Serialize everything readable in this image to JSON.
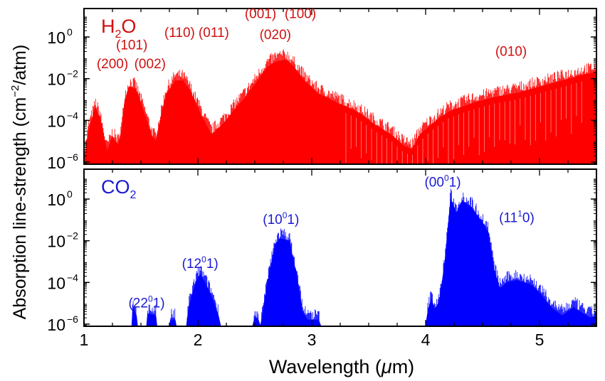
{
  "chart_data": {
    "type": "area",
    "xlabel_pre": "Wavelength (",
    "xlabel_mu": "μ",
    "xlabel_post": "m)",
    "ylabel_pre": "Absorption line-strength (cm",
    "ylabel_exp": "−2",
    "ylabel_post": "/atm)",
    "xlim": [
      1,
      5.5
    ],
    "ylim_log10": [
      -6,
      1.2
    ],
    "x_ticks": [
      1,
      2,
      3,
      4,
      5
    ],
    "x_tick_labels": [
      "1",
      "2",
      "3",
      "4",
      "5"
    ],
    "y_ticks": [
      {
        "exp": 0,
        "base": "10",
        "sup": "0"
      },
      {
        "exp": -2,
        "base": "10",
        "sup": "−2"
      },
      {
        "exp": -4,
        "base": "10",
        "sup": "−4"
      },
      {
        "exp": -6,
        "base": "10",
        "sup": "−6"
      }
    ],
    "panels": [
      {
        "molecule_main": "H",
        "molecule_sub": "2",
        "molecule_tail": "O",
        "color": "#ff0000",
        "label_color": "#d01010",
        "envelope_log10": [
          [
            1.0,
            -6.0
          ],
          [
            1.04,
            -4.5
          ],
          [
            1.1,
            -3.4
          ],
          [
            1.14,
            -3.9
          ],
          [
            1.2,
            -5.5
          ],
          [
            1.25,
            -4.8
          ],
          [
            1.3,
            -5.2
          ],
          [
            1.33,
            -4.5
          ],
          [
            1.36,
            -3.0
          ],
          [
            1.4,
            -2.4
          ],
          [
            1.45,
            -2.5
          ],
          [
            1.5,
            -3.2
          ],
          [
            1.55,
            -4.0
          ],
          [
            1.6,
            -4.8
          ],
          [
            1.63,
            -5.0
          ],
          [
            1.67,
            -4.0
          ],
          [
            1.72,
            -2.8
          ],
          [
            1.8,
            -2.1
          ],
          [
            1.87,
            -2.1
          ],
          [
            1.93,
            -2.6
          ],
          [
            2.0,
            -3.4
          ],
          [
            2.07,
            -4.2
          ],
          [
            2.12,
            -4.7
          ],
          [
            2.18,
            -4.4
          ],
          [
            2.25,
            -4.0
          ],
          [
            2.32,
            -3.5
          ],
          [
            2.4,
            -3.0
          ],
          [
            2.5,
            -2.3
          ],
          [
            2.6,
            -1.5
          ],
          [
            2.68,
            -1.2
          ],
          [
            2.78,
            -1.1
          ],
          [
            2.85,
            -1.5
          ],
          [
            2.95,
            -2.2
          ],
          [
            3.05,
            -2.7
          ],
          [
            3.2,
            -3.1
          ],
          [
            3.4,
            -3.6
          ],
          [
            3.55,
            -4.2
          ],
          [
            3.7,
            -4.7
          ],
          [
            3.8,
            -5.2
          ],
          [
            3.88,
            -5.4
          ],
          [
            3.95,
            -4.7
          ],
          [
            4.05,
            -4.2
          ],
          [
            4.2,
            -3.6
          ],
          [
            4.4,
            -3.2
          ],
          [
            4.6,
            -2.9
          ],
          [
            4.8,
            -2.7
          ],
          [
            5.0,
            -2.4
          ],
          [
            5.2,
            -2.1
          ],
          [
            5.4,
            -1.8
          ],
          [
            5.5,
            -1.7
          ]
        ],
        "annotations": [
          {
            "text": "(200)",
            "x": 1.25,
            "y": -1.5
          },
          {
            "text": "(101)",
            "x": 1.42,
            "y": -0.6
          },
          {
            "text": "(002)",
            "x": 1.58,
            "y": -1.5
          },
          {
            "text": "(110)",
            "x": 1.84,
            "y": 0.0
          },
          {
            "text": "(011)",
            "x": 2.14,
            "y": 0.0
          },
          {
            "text": "(001)",
            "x": 2.55,
            "y": 0.9
          },
          {
            "text": "(100)",
            "x": 2.9,
            "y": 0.9
          },
          {
            "text": "(020)",
            "x": 2.68,
            "y": -0.1
          },
          {
            "text": "(010)",
            "x": 4.75,
            "y": -0.9
          }
        ]
      },
      {
        "molecule_main": "CO",
        "molecule_sub": "2",
        "molecule_tail": "",
        "color": "#0000ff",
        "label_color": "#1a1ad0",
        "envelope_log10": [
          [
            1.0,
            -6.2
          ],
          [
            1.42,
            -6.2
          ],
          [
            1.43,
            -5.2
          ],
          [
            1.46,
            -5.6
          ],
          [
            1.47,
            -6.2
          ],
          [
            1.55,
            -6.2
          ],
          [
            1.56,
            -5.5
          ],
          [
            1.63,
            -5.6
          ],
          [
            1.64,
            -6.2
          ],
          [
            1.75,
            -6.2
          ],
          [
            1.76,
            -5.8
          ],
          [
            1.8,
            -5.8
          ],
          [
            1.81,
            -6.2
          ],
          [
            1.9,
            -6.2
          ],
          [
            1.92,
            -5.2
          ],
          [
            1.97,
            -4.2
          ],
          [
            2.02,
            -3.6
          ],
          [
            2.07,
            -4.1
          ],
          [
            2.13,
            -4.8
          ],
          [
            2.18,
            -5.6
          ],
          [
            2.2,
            -6.2
          ],
          [
            2.48,
            -6.2
          ],
          [
            2.5,
            -5.7
          ],
          [
            2.53,
            -5.8
          ],
          [
            2.55,
            -6.2
          ],
          [
            2.57,
            -5.5
          ],
          [
            2.62,
            -3.8
          ],
          [
            2.68,
            -2.2
          ],
          [
            2.72,
            -1.9
          ],
          [
            2.8,
            -2.0
          ],
          [
            2.86,
            -3.5
          ],
          [
            2.92,
            -5.4
          ],
          [
            2.96,
            -5.8
          ],
          [
            3.06,
            -5.8
          ],
          [
            3.08,
            -6.2
          ],
          [
            4.0,
            -6.2
          ],
          [
            4.02,
            -5.4
          ],
          [
            4.05,
            -4.8
          ],
          [
            4.08,
            -5.3
          ],
          [
            4.12,
            -5.0
          ],
          [
            4.17,
            -3.0
          ],
          [
            4.22,
            0.0
          ],
          [
            4.27,
            -0.7
          ],
          [
            4.32,
            -0.1
          ],
          [
            4.4,
            -0.4
          ],
          [
            4.48,
            -1.0
          ],
          [
            4.55,
            -1.6
          ],
          [
            4.6,
            -3.4
          ],
          [
            4.65,
            -4.3
          ],
          [
            4.72,
            -4.0
          ],
          [
            4.8,
            -3.9
          ],
          [
            4.92,
            -4.1
          ],
          [
            5.0,
            -4.5
          ],
          [
            5.1,
            -5.2
          ],
          [
            5.2,
            -5.6
          ],
          [
            5.3,
            -5.2
          ],
          [
            5.38,
            -5.5
          ],
          [
            5.45,
            -5.7
          ],
          [
            5.5,
            -5.6
          ]
        ],
        "annotations": [
          {
            "base": "(22",
            "sup": "0",
            "tail": "1)",
            "x": 1.55,
            "y": -5.2
          },
          {
            "base": "(12",
            "sup": "0",
            "tail": "1)",
            "x": 2.02,
            "y": -3.3
          },
          {
            "base": "(10",
            "sup": "0",
            "tail": "1)",
            "x": 2.73,
            "y": -1.2
          },
          {
            "base": "(00",
            "sup": "0",
            "tail": "1)",
            "x": 4.15,
            "y": 0.6
          },
          {
            "base": "(11",
            "sup": "1",
            "tail": "0)",
            "x": 4.8,
            "y": -1.1
          }
        ]
      }
    ]
  }
}
